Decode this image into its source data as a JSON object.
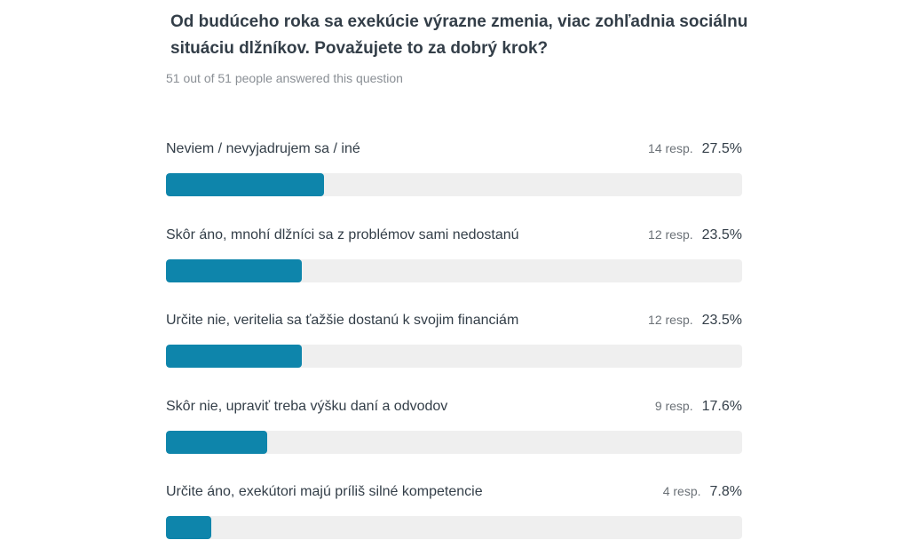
{
  "question": {
    "title": "Od budúceho roka sa exekúcie výrazne zmenia, viac zohľadnia sociálnu situáciu dlžníkov. Považujete to za dobrý krok?",
    "answered": "51 out of 51 people answered this question"
  },
  "colors": {
    "bar": "#0e85ab",
    "track": "#efefef"
  },
  "chart_data": {
    "type": "bar",
    "orientation": "horizontal",
    "categories": [
      "Neviem / nevyjadrujem sa / iné",
      "Skôr áno, mnohí dlžníci sa z problémov sami nedostanú",
      "Určite nie, veritelia sa ťažšie dostanú k svojim financiám",
      "Skôr nie, upraviť treba výšku daní a odvodov",
      "Určite áno, exekútori majú príliš silné kompetencie"
    ],
    "values": [
      27.5,
      23.5,
      23.5,
      17.6,
      7.8
    ],
    "xlim": [
      0,
      100
    ],
    "answers": [
      {
        "label": "Neviem / nevyjadrujem sa / iné",
        "count": "14 resp.",
        "percent_label": "27.5%",
        "percent": 27.5
      },
      {
        "label": "Skôr áno, mnohí dlžníci sa z problémov sami nedostanú",
        "count": "12 resp.",
        "percent_label": "23.5%",
        "percent": 23.5
      },
      {
        "label": "Určite nie, veritelia sa ťažšie dostanú k svojim financiám",
        "count": "12 resp.",
        "percent_label": "23.5%",
        "percent": 23.5
      },
      {
        "label": "Skôr nie, upraviť treba výšku daní a odvodov",
        "count": "9 resp.",
        "percent_label": "17.6%",
        "percent": 17.6
      },
      {
        "label": "Určite áno, exekútori majú príliš silné kompetencie",
        "count": "4 resp.",
        "percent_label": "7.8%",
        "percent": 7.8
      }
    ]
  }
}
